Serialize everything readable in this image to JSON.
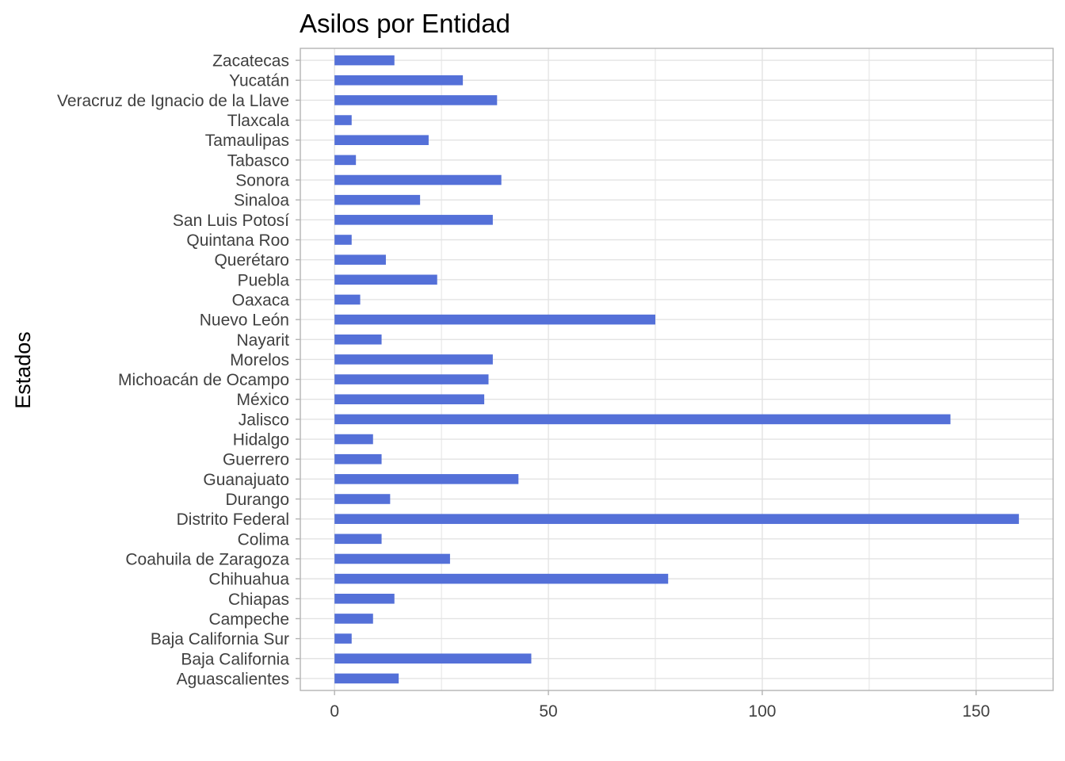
{
  "chart_data": {
    "type": "bar",
    "orientation": "horizontal",
    "title": "Asilos por Entidad",
    "xlabel": "",
    "ylabel": "Estados",
    "xlim": [
      -8,
      168
    ],
    "xticks": [
      0,
      50,
      100,
      150
    ],
    "grid": true,
    "legend": "none",
    "bar_color": "#5470D8",
    "categories": [
      "Aguascalientes",
      "Baja California",
      "Baja California Sur",
      "Campeche",
      "Chiapas",
      "Chihuahua",
      "Coahuila de Zaragoza",
      "Colima",
      "Distrito Federal",
      "Durango",
      "Guanajuato",
      "Guerrero",
      "Hidalgo",
      "Jalisco",
      "México",
      "Michoacán de Ocampo",
      "Morelos",
      "Nayarit",
      "Nuevo León",
      "Oaxaca",
      "Puebla",
      "Querétaro",
      "Quintana Roo",
      "San Luis Potosí",
      "Sinaloa",
      "Sonora",
      "Tabasco",
      "Tamaulipas",
      "Tlaxcala",
      "Veracruz de Ignacio de la Llave",
      "Yucatán",
      "Zacatecas"
    ],
    "values": [
      15,
      46,
      4,
      9,
      14,
      78,
      27,
      11,
      160,
      13,
      43,
      11,
      9,
      144,
      35,
      36,
      37,
      11,
      75,
      6,
      24,
      12,
      4,
      37,
      20,
      39,
      5,
      22,
      4,
      38,
      30,
      14
    ]
  }
}
